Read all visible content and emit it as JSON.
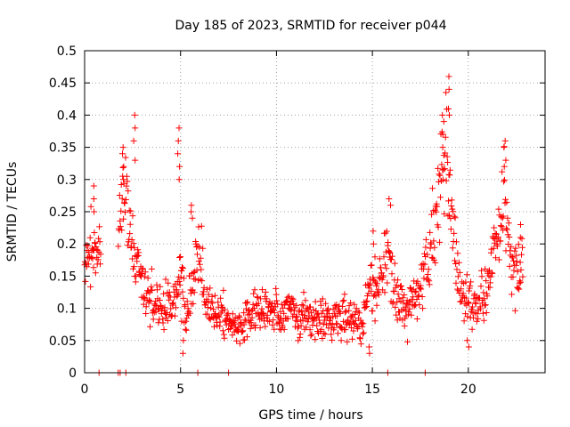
{
  "chart_data": {
    "type": "scatter",
    "title": "Day 185 of 2023, SRMTID for receiver p044",
    "xlabel": "GPS time / hours",
    "ylabel": "SRMTID / TECUs",
    "xlim": [
      0,
      24
    ],
    "ylim": [
      0,
      0.5
    ],
    "xticks": [
      0,
      5,
      10,
      15,
      20
    ],
    "xtick_labels": [
      "0",
      "5",
      "10",
      "15",
      "20"
    ],
    "yticks": [
      0,
      0.05,
      0.1,
      0.15,
      0.2,
      0.25,
      0.3,
      0.35,
      0.4,
      0.45,
      0.5
    ],
    "ytick_labels": [
      "0",
      "0.05",
      "0.1",
      "0.15",
      "0.2",
      "0.25",
      "0.3",
      "0.35",
      "0.4",
      "0.45",
      "0.5"
    ],
    "grid": true,
    "marker": "+",
    "color": "#ff0000",
    "legend": "none",
    "zero_markers_x": [
      0.75,
      1.75,
      1.85,
      2.15,
      5.9,
      7.5,
      15.8,
      17.75
    ],
    "trend": [
      [
        0.0,
        0.16
      ],
      [
        0.3,
        0.19
      ],
      [
        0.6,
        0.2
      ],
      [
        0.8,
        0.18
      ],
      [
        1.8,
        0.24
      ],
      [
        2.0,
        0.3
      ],
      [
        2.2,
        0.27
      ],
      [
        2.5,
        0.2
      ],
      [
        3.0,
        0.14
      ],
      [
        3.5,
        0.11
      ],
      [
        4.0,
        0.1
      ],
      [
        4.5,
        0.1
      ],
      [
        5.0,
        0.16
      ],
      [
        5.3,
        0.09
      ],
      [
        5.7,
        0.15
      ],
      [
        6.0,
        0.2
      ],
      [
        6.3,
        0.1
      ],
      [
        7.0,
        0.1
      ],
      [
        7.5,
        0.08
      ],
      [
        8.0,
        0.07
      ],
      [
        8.5,
        0.08
      ],
      [
        9.0,
        0.1
      ],
      [
        9.5,
        0.1
      ],
      [
        10.0,
        0.09
      ],
      [
        10.5,
        0.1
      ],
      [
        11.0,
        0.09
      ],
      [
        11.5,
        0.09
      ],
      [
        12.0,
        0.08
      ],
      [
        12.5,
        0.09
      ],
      [
        13.0,
        0.08
      ],
      [
        13.5,
        0.09
      ],
      [
        14.0,
        0.08
      ],
      [
        14.5,
        0.07
      ],
      [
        14.9,
        0.14
      ],
      [
        15.2,
        0.11
      ],
      [
        15.8,
        0.2
      ],
      [
        16.2,
        0.12
      ],
      [
        16.8,
        0.09
      ],
      [
        17.3,
        0.12
      ],
      [
        17.8,
        0.16
      ],
      [
        18.2,
        0.22
      ],
      [
        18.6,
        0.3
      ],
      [
        18.9,
        0.35
      ],
      [
        19.2,
        0.22
      ],
      [
        19.6,
        0.13
      ],
      [
        20.0,
        0.11
      ],
      [
        20.5,
        0.1
      ],
      [
        21.0,
        0.14
      ],
      [
        21.5,
        0.2
      ],
      [
        21.9,
        0.27
      ],
      [
        22.3,
        0.15
      ],
      [
        22.8,
        0.17
      ]
    ],
    "spikes": [
      {
        "x": 0.5,
        "values": [
          0.29,
          0.27,
          0.25
        ]
      },
      {
        "x": 2.0,
        "values": [
          0.35,
          0.34,
          0.32,
          0.3
        ]
      },
      {
        "x": 2.6,
        "values": [
          0.4,
          0.38,
          0.36,
          0.33
        ]
      },
      {
        "x": 4.9,
        "values": [
          0.38,
          0.36,
          0.34,
          0.32,
          0.3
        ]
      },
      {
        "x": 5.1,
        "values": [
          0.08,
          0.05,
          0.03
        ]
      },
      {
        "x": 5.6,
        "values": [
          0.26,
          0.25,
          0.24
        ]
      },
      {
        "x": 14.8,
        "values": [
          0.04,
          0.03
        ]
      },
      {
        "x": 15.1,
        "values": [
          0.22,
          0.2,
          0.18
        ]
      },
      {
        "x": 15.9,
        "values": [
          0.27,
          0.26
        ]
      },
      {
        "x": 18.7,
        "values": [
          0.4,
          0.39,
          0.37,
          0.35
        ]
      },
      {
        "x": 18.95,
        "values": [
          0.46,
          0.44,
          0.41,
          0.4
        ]
      },
      {
        "x": 20.0,
        "values": [
          0.05,
          0.04
        ]
      },
      {
        "x": 21.9,
        "values": [
          0.36,
          0.35,
          0.33,
          0.32
        ]
      },
      {
        "x": 22.7,
        "values": [
          0.21,
          0.23
        ]
      }
    ]
  }
}
